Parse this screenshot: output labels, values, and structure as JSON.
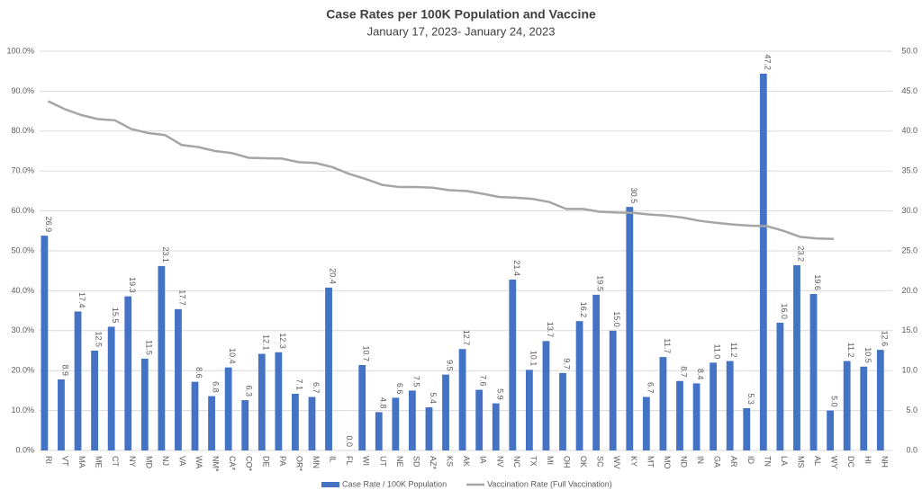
{
  "chart_data": {
    "type": "bar",
    "title": "Case Rates per 100K Population and Vaccine",
    "subtitle": "January 17, 2023- January 24, 2023",
    "categories": [
      "RI",
      "VT",
      "MA",
      "ME",
      "CT",
      "NY",
      "MD",
      "NJ",
      "VA",
      "WA",
      "NM*",
      "CA*",
      "CO*",
      "DE",
      "PA",
      "OR*",
      "MN",
      "IL",
      "FL",
      "WI",
      "UT",
      "NE",
      "SD",
      "AZ*",
      "KS",
      "AK",
      "IA",
      "NV",
      "NC",
      "TX",
      "MI",
      "OH",
      "OK",
      "SC",
      "WV",
      "KY",
      "MT",
      "MO",
      "ND",
      "IN",
      "GA",
      "AR",
      "ID",
      "TN",
      "LA",
      "MS",
      "AL",
      "WY",
      "DC",
      "HI",
      "NH"
    ],
    "series": [
      {
        "name": "Case Rate / 100K Population",
        "color": "#4472c4",
        "type": "bar",
        "axis": "y2",
        "values": [
          26.9,
          8.9,
          17.4,
          12.5,
          15.5,
          19.3,
          11.5,
          23.1,
          17.7,
          8.6,
          6.8,
          10.4,
          6.3,
          12.1,
          12.3,
          7.1,
          6.7,
          20.4,
          0.0,
          10.7,
          4.8,
          6.6,
          7.5,
          5.4,
          9.5,
          12.7,
          7.6,
          5.9,
          21.4,
          10.1,
          13.7,
          9.7,
          16.2,
          19.5,
          15.0,
          30.5,
          6.7,
          11.7,
          8.7,
          8.4,
          11.0,
          11.2,
          5.3,
          47.2,
          16.0,
          23.2,
          19.6,
          5.0,
          11.2,
          10.5,
          12.6
        ],
        "value_labels": [
          "26.9",
          "8.9",
          "17.4",
          "12.5",
          "15.5",
          "19.3",
          "11.5",
          "23.1",
          "17.7",
          "8.6",
          "6.8",
          "10.4",
          "6.3",
          "12.1",
          "12.3",
          "7.1",
          "6.7",
          "20.4",
          "0.0",
          "10.7",
          "4.8",
          "6.6",
          "7.5",
          "5.4",
          "9.5",
          "12.7",
          "7.6",
          "5.9",
          "21.4",
          "10.1",
          "13.7",
          "9.7",
          "16.2",
          "19.5",
          "15.0",
          "30.5",
          "6.7",
          "11.7",
          "8.7",
          "8.4",
          "11.0",
          "11.2",
          "5.3",
          "47.2",
          "16.0",
          "23.2",
          "19.6",
          "5.0",
          "11.2",
          "10.5",
          "12.6"
        ]
      },
      {
        "name": "Vaccination Rate (Full Vaccination)",
        "color": "#a5a5a5",
        "type": "line",
        "values": [
          87.5,
          85.5,
          84,
          83,
          82.7,
          80.5,
          79.5,
          79,
          76.5,
          76,
          75,
          74.5,
          73.3,
          73.2,
          73.1,
          72.2,
          72,
          71,
          69.3,
          68,
          66.5,
          66,
          66,
          65.8,
          65.2,
          65,
          64.3,
          63.5,
          63.3,
          63,
          62.2,
          60.5,
          60.5,
          59.8,
          59.6,
          59.5,
          59.1,
          58.8,
          58.3,
          57.5,
          57,
          56.6,
          56.3,
          56.2,
          55,
          53.5,
          53.1,
          53,
          null,
          null,
          null
        ]
      }
    ],
    "ylim": [
      0,
      100
    ],
    "yticks": [
      {
        "value": 0,
        "label": "0.0%"
      },
      {
        "value": 10,
        "label": "10.0%"
      },
      {
        "value": 20,
        "label": "20.0%"
      },
      {
        "value": 30,
        "label": "30.0%"
      },
      {
        "value": 40,
        "label": "40.0%"
      },
      {
        "value": 50,
        "label": "50.0%"
      },
      {
        "value": 60,
        "label": "60.0%"
      },
      {
        "value": 70,
        "label": "70.0%"
      },
      {
        "value": 80,
        "label": "80.0%"
      },
      {
        "value": 90,
        "label": "90.0%"
      },
      {
        "value": 100,
        "label": "100.0%"
      }
    ],
    "y2lim": [
      0,
      50
    ],
    "y2ticks": [
      {
        "value": 0,
        "label": "0.0"
      },
      {
        "value": 5,
        "label": "5.0"
      },
      {
        "value": 10,
        "label": "10.0"
      },
      {
        "value": 15,
        "label": "15.0"
      },
      {
        "value": 20,
        "label": "20.0"
      },
      {
        "value": 25,
        "label": "25.0"
      },
      {
        "value": 30,
        "label": "30.0"
      },
      {
        "value": 35,
        "label": "35.0"
      },
      {
        "value": 40,
        "label": "40.0"
      },
      {
        "value": 45,
        "label": "45.0"
      },
      {
        "value": 50,
        "label": "50.0"
      }
    ],
    "grid": true,
    "legend": "bottom"
  }
}
